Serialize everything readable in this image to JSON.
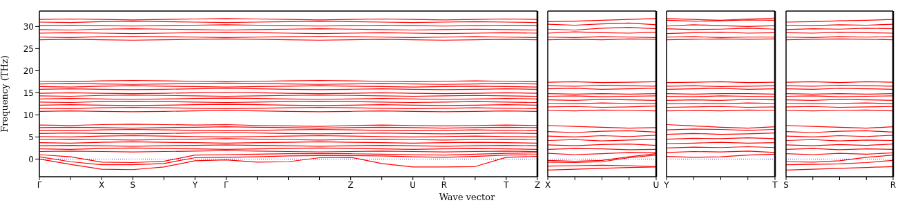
{
  "chart_data": [
    {
      "type": "line",
      "ylabel": "Frequency (THz)",
      "xlabel": "Wave vector",
      "categories": [
        "Γ",
        null,
        "X",
        "S",
        null,
        "Y",
        "Γ",
        null,
        null,
        null,
        "Z",
        null,
        "U",
        "R",
        null,
        "T",
        "Z"
      ],
      "ylim": [
        -4,
        33.5
      ],
      "yticks": [
        0,
        5,
        10,
        15,
        20,
        25,
        30
      ],
      "ref_lines": [
        {
          "axis": "y",
          "value": 0,
          "color": "#0000ff",
          "line_style": "dotted"
        }
      ],
      "series": [
        {
          "color": "#ff0000",
          "values": [
            27.0,
            27.1,
            27.0,
            26.9,
            27.0,
            27.1,
            27.2,
            27.1,
            27.0,
            26.9,
            27.0,
            27.1,
            27.0,
            26.9,
            27.0,
            27.1,
            27.0
          ]
        },
        {
          "color": "#ff0000",
          "values": [
            27.6,
            27.5,
            27.7,
            27.8,
            27.7,
            27.6,
            27.5,
            27.6,
            27.7,
            27.8,
            27.7,
            27.6,
            27.5,
            27.6,
            27.7,
            27.6,
            27.5
          ]
        },
        {
          "color": "#ff0000",
          "values": [
            28.5,
            28.6,
            28.5,
            28.4,
            28.5,
            28.6,
            28.7,
            28.6,
            28.5,
            28.4,
            28.5,
            28.6,
            28.5,
            28.4,
            28.5,
            28.6,
            28.5
          ]
        },
        {
          "color": "#ff0000",
          "values": [
            29.3,
            29.2,
            29.4,
            29.5,
            29.4,
            29.3,
            29.2,
            29.3,
            29.4,
            29.5,
            29.4,
            29.3,
            29.2,
            29.3,
            29.4,
            29.3,
            29.2
          ]
        },
        {
          "color": "#ff0000",
          "values": [
            30.2,
            30.3,
            30.2,
            30.1,
            30.2,
            30.3,
            30.4,
            30.3,
            30.2,
            30.1,
            30.2,
            30.3,
            30.2,
            30.1,
            30.2,
            30.3,
            30.2
          ]
        },
        {
          "color": "#ff0000",
          "values": [
            31.0,
            30.9,
            31.1,
            31.2,
            31.1,
            31.0,
            30.9,
            31.0,
            31.1,
            31.2,
            31.1,
            31.0,
            30.9,
            31.0,
            31.1,
            31.0,
            30.9
          ]
        },
        {
          "color": "#ff0000",
          "values": [
            31.6,
            31.7,
            31.6,
            31.5,
            31.6,
            31.7,
            31.8,
            31.7,
            31.6,
            31.5,
            31.6,
            31.7,
            31.6,
            31.5,
            31.6,
            31.7,
            31.6
          ]
        },
        {
          "color": "#ff0000",
          "values": [
            15.8,
            15.9,
            15.8,
            15.7,
            15.8,
            15.9,
            16.0,
            15.9,
            15.8,
            15.7,
            15.8,
            15.9,
            15.8,
            15.7,
            15.8,
            15.9,
            15.8
          ]
        },
        {
          "color": "#ff0000",
          "values": [
            16.4,
            16.3,
            16.5,
            16.6,
            16.5,
            16.4,
            16.3,
            16.4,
            16.5,
            16.6,
            16.5,
            16.4,
            16.3,
            16.4,
            16.5,
            16.4,
            16.3
          ]
        },
        {
          "color": "#ff0000",
          "values": [
            17.0,
            17.1,
            17.0,
            16.9,
            17.0,
            17.1,
            17.2,
            17.1,
            17.0,
            16.9,
            17.0,
            17.1,
            17.0,
            16.9,
            17.0,
            17.1,
            17.0
          ]
        },
        {
          "color": "#ff0000",
          "values": [
            17.6,
            17.5,
            17.7,
            17.8,
            17.7,
            17.6,
            17.5,
            17.6,
            17.7,
            17.8,
            17.7,
            17.6,
            17.5,
            17.6,
            17.7,
            17.6,
            17.5
          ]
        },
        {
          "color": "#ff0000",
          "values": [
            10.8,
            10.9,
            10.8,
            10.7,
            10.8,
            10.9,
            11.0,
            10.9,
            10.8,
            10.7,
            10.8,
            10.9,
            10.8,
            10.7,
            10.8,
            10.9,
            10.8
          ]
        },
        {
          "color": "#ff0000",
          "values": [
            11.5,
            11.4,
            11.6,
            11.7,
            11.6,
            11.5,
            11.4,
            11.5,
            11.6,
            11.7,
            11.6,
            11.5,
            11.4,
            11.5,
            11.6,
            11.5,
            11.4
          ]
        },
        {
          "color": "#ff0000",
          "values": [
            12.2,
            12.3,
            12.2,
            12.1,
            12.2,
            12.3,
            12.4,
            12.3,
            12.2,
            12.1,
            12.2,
            12.3,
            12.2,
            12.1,
            12.2,
            12.3,
            12.2
          ]
        },
        {
          "color": "#ff0000",
          "values": [
            12.9,
            12.8,
            13.0,
            13.1,
            13.0,
            12.9,
            12.8,
            12.9,
            13.0,
            13.1,
            13.0,
            12.9,
            12.8,
            12.9,
            13.0,
            12.9,
            12.8
          ]
        },
        {
          "color": "#ff0000",
          "values": [
            13.6,
            13.7,
            13.6,
            13.5,
            13.6,
            13.7,
            13.8,
            13.7,
            13.6,
            13.5,
            13.6,
            13.7,
            13.6,
            13.5,
            13.6,
            13.7,
            13.6
          ]
        },
        {
          "color": "#ff0000",
          "values": [
            14.3,
            14.2,
            14.4,
            14.5,
            14.4,
            14.3,
            14.2,
            14.3,
            14.4,
            14.5,
            14.4,
            14.3,
            14.2,
            14.3,
            14.4,
            14.3,
            14.2
          ]
        },
        {
          "color": "#ff0000",
          "values": [
            14.9,
            15.0,
            14.9,
            14.8,
            14.9,
            15.0,
            15.1,
            15.0,
            14.9,
            14.8,
            14.9,
            15.0,
            14.9,
            14.8,
            14.9,
            15.0,
            14.9
          ]
        },
        {
          "color": "#ff0000",
          "values": [
            1.7,
            1.8,
            1.7,
            1.6,
            1.7,
            1.8,
            1.9,
            1.8,
            1.7,
            1.6,
            1.7,
            1.8,
            1.7,
            1.6,
            1.7,
            1.8,
            1.7
          ]
        },
        {
          "color": "#ff0000",
          "values": [
            2.3,
            2.2,
            2.4,
            2.5,
            2.4,
            2.3,
            2.2,
            2.3,
            2.4,
            2.5,
            2.4,
            2.3,
            2.2,
            2.3,
            2.4,
            2.3,
            2.2
          ]
        },
        {
          "color": "#ff0000",
          "values": [
            3.0,
            3.1,
            3.0,
            2.9,
            3.0,
            3.1,
            3.2,
            3.1,
            3.0,
            2.9,
            3.0,
            3.1,
            3.0,
            2.9,
            3.0,
            3.1,
            3.0
          ]
        },
        {
          "color": "#ff0000",
          "values": [
            3.7,
            3.6,
            3.8,
            3.9,
            3.8,
            3.7,
            3.6,
            3.7,
            3.8,
            3.9,
            3.8,
            3.7,
            3.6,
            3.7,
            3.8,
            3.7,
            3.6
          ]
        },
        {
          "color": "#ff0000",
          "values": [
            4.4,
            4.5,
            4.4,
            4.3,
            4.4,
            4.5,
            4.6,
            4.5,
            4.4,
            4.3,
            4.4,
            4.5,
            4.4,
            4.3,
            4.4,
            4.5,
            4.4
          ]
        },
        {
          "color": "#ff0000",
          "values": [
            5.1,
            5.0,
            5.2,
            5.3,
            5.2,
            5.1,
            5.0,
            5.1,
            5.2,
            5.3,
            5.2,
            5.1,
            5.0,
            5.1,
            5.2,
            5.1,
            5.0
          ]
        },
        {
          "color": "#ff0000",
          "values": [
            5.8,
            5.9,
            5.8,
            5.7,
            5.8,
            5.9,
            6.0,
            5.9,
            5.8,
            5.7,
            5.8,
            5.9,
            5.8,
            5.7,
            5.8,
            5.9,
            5.8
          ]
        },
        {
          "color": "#ff0000",
          "values": [
            6.5,
            6.4,
            6.6,
            6.7,
            6.6,
            6.5,
            6.4,
            6.5,
            6.6,
            6.7,
            6.6,
            6.5,
            6.4,
            6.5,
            6.6,
            6.5,
            6.4
          ]
        },
        {
          "color": "#ff0000",
          "values": [
            7.1,
            7.2,
            7.1,
            7.0,
            7.1,
            7.2,
            7.3,
            7.2,
            7.1,
            7.0,
            7.1,
            7.2,
            7.1,
            7.0,
            7.1,
            7.2,
            7.1
          ]
        },
        {
          "color": "#ff0000",
          "values": [
            7.7,
            7.6,
            7.8,
            7.9,
            7.8,
            7.7,
            7.8,
            7.6,
            7.5,
            7.4,
            7.6,
            7.7,
            7.6,
            7.5,
            7.6,
            7.7,
            7.6
          ]
        },
        {
          "color": "#ff0000",
          "values": [
            0,
            -1.2,
            -2.3,
            -2.4,
            -1.8,
            -0.4,
            -0.2,
            -0.7,
            -0.6,
            0.3,
            0.4,
            -1.0,
            -1.8,
            -1.8,
            -1.7,
            0.4,
            0.6
          ]
        },
        {
          "color": "#ff0000",
          "values": [
            0.5,
            -0.6,
            -1.3,
            -1.3,
            -1.0,
            0.3,
            0.4,
            0.5,
            0.7,
            0.8,
            0.8,
            0.7,
            0.5,
            0.4,
            0.6,
            0.9,
            1.0
          ]
        },
        {
          "color": "#ff0000",
          "values": [
            1.0,
            0.5,
            -0.7,
            -0.8,
            -0.5,
            0.9,
            1.0,
            1.1,
            1.2,
            1.2,
            1.2,
            1.1,
            1.0,
            0.9,
            1.1,
            1.3,
            1.4
          ]
        }
      ]
    },
    {
      "type": "line",
      "tick_labels": "x",
      "categories": [
        "X",
        null,
        null,
        null,
        "U"
      ],
      "ylim": [
        -4,
        33.5
      ],
      "yticks": [
        0,
        5,
        10,
        15,
        20,
        25,
        30
      ],
      "ref_lines": [
        {
          "axis": "y",
          "value": 0,
          "color": "#0000ff",
          "line_style": "dotted"
        }
      ],
      "series": [
        {
          "color": "#ff0000",
          "values": [
            27.0,
            27.1,
            27.0,
            27.2,
            27.1
          ]
        },
        {
          "color": "#ff0000",
          "values": [
            27.6,
            27.5,
            27.7,
            27.6,
            27.5
          ]
        },
        {
          "color": "#ff0000",
          "values": [
            28.5,
            28.8,
            28.6,
            28.5,
            28.7
          ]
        },
        {
          "color": "#ff0000",
          "values": [
            29.4,
            29.2,
            29.6,
            29.8,
            29.5
          ]
        },
        {
          "color": "#ff0000",
          "values": [
            30.5,
            30.3,
            30.6,
            30.8,
            30.4
          ]
        },
        {
          "color": "#ff0000",
          "values": [
            31.1,
            31.2,
            31.4,
            31.6,
            31.8
          ]
        },
        {
          "color": "#ff0000",
          "values": [
            15.9,
            16.0,
            15.8,
            15.9,
            16.0
          ]
        },
        {
          "color": "#ff0000",
          "values": [
            16.6,
            16.5,
            16.7,
            16.6,
            16.5
          ]
        },
        {
          "color": "#ff0000",
          "values": [
            17.4,
            17.5,
            17.3,
            17.4,
            17.5
          ]
        },
        {
          "color": "#ff0000",
          "values": [
            11.0,
            10.9,
            11.1,
            11.0,
            10.9
          ]
        },
        {
          "color": "#ff0000",
          "values": [
            11.8,
            11.9,
            11.7,
            11.8,
            12.0
          ]
        },
        {
          "color": "#ff0000",
          "values": [
            12.6,
            12.5,
            12.7,
            12.6,
            12.5
          ]
        },
        {
          "color": "#ff0000",
          "values": [
            13.4,
            13.3,
            13.5,
            13.4,
            13.3
          ]
        },
        {
          "color": "#ff0000",
          "values": [
            14.2,
            14.3,
            14.1,
            14.2,
            14.3
          ]
        },
        {
          "color": "#ff0000",
          "values": [
            14.8,
            14.7,
            14.8,
            14.7,
            14.8
          ]
        },
        {
          "color": "#ff0000",
          "values": [
            1.3,
            1.0,
            1.2,
            1.5,
            1.4
          ]
        },
        {
          "color": "#ff0000",
          "values": [
            2.2,
            2.4,
            2.3,
            2.1,
            2.2
          ]
        },
        {
          "color": "#ff0000",
          "values": [
            3.2,
            3.0,
            3.3,
            3.4,
            3.1
          ]
        },
        {
          "color": "#ff0000",
          "values": [
            4.2,
            4.4,
            4.1,
            4.3,
            4.5
          ]
        },
        {
          "color": "#ff0000",
          "values": [
            5.2,
            5.0,
            5.3,
            5.1,
            5.4
          ]
        },
        {
          "color": "#ff0000",
          "values": [
            6.2,
            6.0,
            6.3,
            6.4,
            6.1
          ]
        },
        {
          "color": "#ff0000",
          "values": [
            7.6,
            7.4,
            7.2,
            7.0,
            7.1
          ]
        },
        {
          "color": "#ff0000",
          "values": [
            -2.5,
            -2.3,
            -2.1,
            -1.9,
            -1.8
          ]
        },
        {
          "color": "#ff0000",
          "values": [
            -1.6,
            -1.5,
            -1.4,
            -1.5,
            -1.7
          ]
        },
        {
          "color": "#ff0000",
          "values": [
            -0.7,
            -0.8,
            -0.6,
            0.3,
            0.9
          ]
        },
        {
          "color": "#ff0000",
          "values": [
            -0.3,
            -0.5,
            -0.3,
            0.5,
            1.2
          ]
        }
      ]
    },
    {
      "type": "line",
      "tick_labels": "x",
      "categories": [
        "Y",
        null,
        null,
        null,
        "T"
      ],
      "ylim": [
        -4,
        33.5
      ],
      "yticks": [
        0,
        5,
        10,
        15,
        20,
        25,
        30
      ],
      "ref_lines": [
        {
          "axis": "y",
          "value": 0,
          "color": "#0000ff",
          "line_style": "dotted"
        }
      ],
      "series": [
        {
          "color": "#ff0000",
          "values": [
            27.0,
            27.1,
            27.2,
            27.1,
            27.2
          ]
        },
        {
          "color": "#ff0000",
          "values": [
            27.6,
            27.7,
            27.5,
            27.6,
            27.6
          ]
        },
        {
          "color": "#ff0000",
          "values": [
            28.4,
            28.6,
            28.7,
            28.5,
            28.6
          ]
        },
        {
          "color": "#ff0000",
          "values": [
            29.5,
            29.3,
            29.4,
            29.6,
            29.4
          ]
        },
        {
          "color": "#ff0000",
          "values": [
            30.1,
            30.4,
            30.2,
            30.0,
            30.2
          ]
        },
        {
          "color": "#ff0000",
          "values": [
            31.4,
            31.2,
            31.3,
            31.5,
            31.4
          ]
        },
        {
          "color": "#ff0000",
          "values": [
            31.8,
            31.6,
            31.4,
            31.7,
            31.9
          ]
        },
        {
          "color": "#ff0000",
          "values": [
            15.8,
            15.9,
            16.0,
            15.8,
            15.9
          ]
        },
        {
          "color": "#ff0000",
          "values": [
            16.5,
            16.6,
            16.4,
            16.5,
            16.6
          ]
        },
        {
          "color": "#ff0000",
          "values": [
            17.3,
            17.4,
            17.5,
            17.3,
            17.4
          ]
        },
        {
          "color": "#ff0000",
          "values": [
            10.9,
            11.0,
            10.9,
            11.1,
            11.0
          ]
        },
        {
          "color": "#ff0000",
          "values": [
            11.7,
            11.8,
            11.9,
            11.7,
            11.8
          ]
        },
        {
          "color": "#ff0000",
          "values": [
            12.5,
            12.6,
            12.5,
            12.7,
            12.6
          ]
        },
        {
          "color": "#ff0000",
          "values": [
            13.3,
            13.4,
            13.3,
            13.5,
            13.4
          ]
        },
        {
          "color": "#ff0000",
          "values": [
            14.2,
            14.1,
            14.3,
            14.2,
            14.1
          ]
        },
        {
          "color": "#ff0000",
          "values": [
            14.8,
            14.7,
            14.8,
            14.8,
            14.7
          ]
        },
        {
          "color": "#ff0000",
          "values": [
            0.6,
            0.4,
            0.5,
            0.9,
            1.1
          ]
        },
        {
          "color": "#ff0000",
          "values": [
            1.5,
            1.7,
            1.6,
            1.8,
            1.5
          ]
        },
        {
          "color": "#ff0000",
          "values": [
            2.5,
            2.7,
            2.6,
            2.8,
            2.6
          ]
        },
        {
          "color": "#ff0000",
          "values": [
            3.5,
            3.6,
            3.8,
            3.6,
            3.7
          ]
        },
        {
          "color": "#ff0000",
          "values": [
            4.5,
            4.7,
            4.6,
            4.8,
            4.6
          ]
        },
        {
          "color": "#ff0000",
          "values": [
            5.6,
            5.8,
            5.6,
            5.7,
            5.9
          ]
        },
        {
          "color": "#ff0000",
          "values": [
            6.6,
            6.8,
            6.7,
            6.5,
            6.7
          ]
        },
        {
          "color": "#ff0000",
          "values": [
            7.8,
            7.5,
            7.2,
            7.0,
            7.3
          ]
        }
      ]
    },
    {
      "type": "line",
      "tick_labels": "x",
      "categories": [
        "S",
        null,
        null,
        null,
        "R"
      ],
      "ylim": [
        -4,
        33.5
      ],
      "yticks": [
        0,
        5,
        10,
        15,
        20,
        25,
        30
      ],
      "ref_lines": [
        {
          "axis": "y",
          "value": 0,
          "color": "#0000ff",
          "line_style": "dotted"
        }
      ],
      "series": [
        {
          "color": "#ff0000",
          "values": [
            27.0,
            27.1,
            27.2,
            27.1,
            27.0
          ]
        },
        {
          "color": "#ff0000",
          "values": [
            27.6,
            27.5,
            27.7,
            27.6,
            27.7
          ]
        },
        {
          "color": "#ff0000",
          "values": [
            28.6,
            28.5,
            28.7,
            28.6,
            28.5
          ]
        },
        {
          "color": "#ff0000",
          "values": [
            29.3,
            29.5,
            29.4,
            29.6,
            29.5
          ]
        },
        {
          "color": "#ff0000",
          "values": [
            30.3,
            30.2,
            30.4,
            30.3,
            30.5
          ]
        },
        {
          "color": "#ff0000",
          "values": [
            31.0,
            31.1,
            31.3,
            31.4,
            31.6
          ]
        },
        {
          "color": "#ff0000",
          "values": [
            15.9,
            15.8,
            16.0,
            15.9,
            15.8
          ]
        },
        {
          "color": "#ff0000",
          "values": [
            16.6,
            16.5,
            16.7,
            16.6,
            16.5
          ]
        },
        {
          "color": "#ff0000",
          "values": [
            17.4,
            17.5,
            17.3,
            17.5,
            17.4
          ]
        },
        {
          "color": "#ff0000",
          "values": [
            11.0,
            10.9,
            11.0,
            11.1,
            10.9
          ]
        },
        {
          "color": "#ff0000",
          "values": [
            11.8,
            11.9,
            11.7,
            11.8,
            11.9
          ]
        },
        {
          "color": "#ff0000",
          "values": [
            12.6,
            12.5,
            12.6,
            12.7,
            12.5
          ]
        },
        {
          "color": "#ff0000",
          "values": [
            13.4,
            13.3,
            13.5,
            13.4,
            13.3
          ]
        },
        {
          "color": "#ff0000",
          "values": [
            14.2,
            14.3,
            14.1,
            14.2,
            14.3
          ]
        },
        {
          "color": "#ff0000",
          "values": [
            14.8,
            14.7,
            14.8,
            14.7,
            14.8
          ]
        },
        {
          "color": "#ff0000",
          "values": [
            1.2,
            1.0,
            1.3,
            1.1,
            1.4
          ]
        },
        {
          "color": "#ff0000",
          "values": [
            2.2,
            2.4,
            2.1,
            2.3,
            2.2
          ]
        },
        {
          "color": "#ff0000",
          "values": [
            3.2,
            3.0,
            3.3,
            3.1,
            3.4
          ]
        },
        {
          "color": "#ff0000",
          "values": [
            4.2,
            4.4,
            4.1,
            4.3,
            4.2
          ]
        },
        {
          "color": "#ff0000",
          "values": [
            5.2,
            5.0,
            5.3,
            5.1,
            5.4
          ]
        },
        {
          "color": "#ff0000",
          "values": [
            6.2,
            6.0,
            6.3,
            6.4,
            6.1
          ]
        },
        {
          "color": "#ff0000",
          "values": [
            7.6,
            7.4,
            7.2,
            7.0,
            7.3
          ]
        },
        {
          "color": "#ff0000",
          "values": [
            -2.5,
            -2.3,
            -2.1,
            -1.9,
            -1.7
          ]
        },
        {
          "color": "#ff0000",
          "values": [
            -1.3,
            -1.2,
            -1.1,
            -0.8,
            -0.3
          ]
        },
        {
          "color": "#ff0000",
          "values": [
            -0.6,
            -0.7,
            -0.4,
            0.4,
            0.9
          ]
        }
      ]
    }
  ]
}
